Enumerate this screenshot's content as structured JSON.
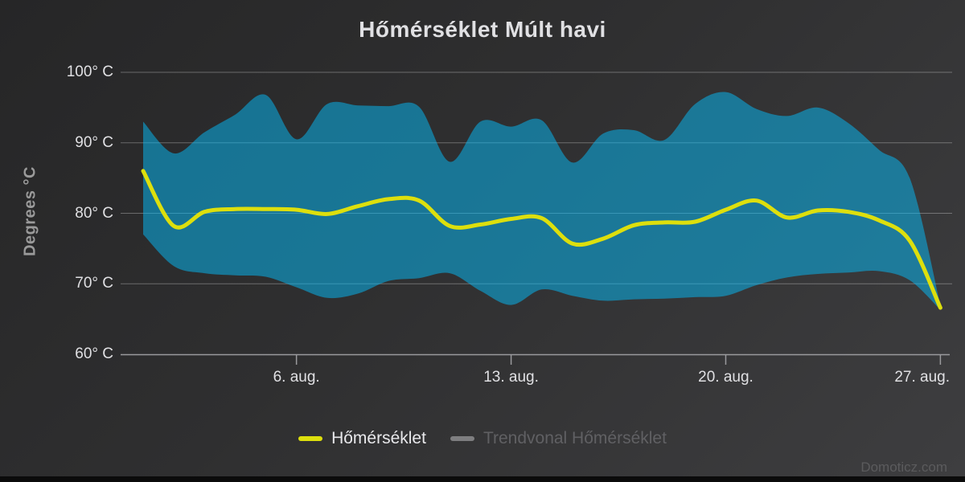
{
  "page": {
    "credit": "Domoticz.com"
  },
  "chart_data": {
    "type": "arearange+spline",
    "title": "Hőmérséklet Múlt havi",
    "ylabel": "Degrees °C",
    "ylim": [
      60,
      100
    ],
    "grid": true,
    "legend_position": "bottom-center",
    "yticks": [
      {
        "value": 100,
        "label": "100° C"
      },
      {
        "value": 90,
        "label": "90° C"
      },
      {
        "value": 80,
        "label": "80° C"
      },
      {
        "value": 70,
        "label": "70° C"
      },
      {
        "value": 60,
        "label": "60° C"
      }
    ],
    "x": [
      1,
      2,
      3,
      4,
      5,
      6,
      7,
      8,
      9,
      10,
      11,
      12,
      13,
      14,
      15,
      16,
      17,
      18,
      19,
      20,
      21,
      22,
      23,
      24,
      25,
      26,
      27
    ],
    "x_unit": "day of August",
    "xticks": [
      {
        "x": 6,
        "label": "6. aug."
      },
      {
        "x": 13,
        "label": "13. aug."
      },
      {
        "x": 20,
        "label": "20. aug."
      },
      {
        "x": 27,
        "label": "27. aug."
      }
    ],
    "series": [
      {
        "name": "Hőmérséklet (range)",
        "type": "arearange",
        "color": "rgba(3,190,252,0.5)",
        "max": [
          93,
          88.5,
          91.5,
          94,
          96.8,
          90.5,
          95.5,
          95.3,
          95.2,
          95.1,
          87.3,
          93,
          92.3,
          93.2,
          87.2,
          91.3,
          91.8,
          90.4,
          95.5,
          97.2,
          94.8,
          93.8,
          95,
          92.8,
          89,
          85,
          67
        ],
        "min": [
          77,
          72.5,
          71.5,
          71.2,
          71,
          69.5,
          68,
          68.6,
          70.4,
          70.8,
          71.5,
          69,
          67,
          69.2,
          68.3,
          67.6,
          67.8,
          67.9,
          68.1,
          68.3,
          69.8,
          70.9,
          71.4,
          71.6,
          71.8,
          70.5,
          66.3
        ]
      },
      {
        "name": "Hőmérséklet",
        "type": "spline",
        "color": "#DDDF0D",
        "values": [
          86,
          78.2,
          80.2,
          80.6,
          80.6,
          80.5,
          79.9,
          81,
          82,
          81.8,
          78.2,
          78.4,
          79.2,
          79.3,
          75.7,
          76.4,
          78.3,
          78.7,
          78.8,
          80.5,
          81.8,
          79.4,
          80.4,
          80.2,
          79,
          76.1,
          66.6
        ]
      },
      {
        "name": "Trendvonal Hőmérséklet",
        "type": "spline",
        "color": "#7E7E80",
        "visible": false,
        "values": []
      }
    ],
    "legend": {
      "items": [
        {
          "label": "Hőmérséklet",
          "slug": "homerseklet",
          "symbol_color": "#DDDF0D",
          "label_color": "#E8E8EB",
          "enabled": true
        },
        {
          "label": "Trendvonal Hőmérséklet",
          "slug": "trendvonal-homerseklet",
          "symbol_color": "#7E7E80",
          "label_color": "#606063",
          "enabled": false
        }
      ]
    },
    "colors": {
      "background_top_left": "#262627",
      "background_bottom_right": "#3E3E40",
      "grid_line": "rgba(255,255,255,0.30)",
      "axis_line": "#9A9A9D",
      "tick_text": "#E0E0E3",
      "y_axis_title": "#9A9A9A",
      "credit": "#5B5B5D",
      "bottom_bar": "#0B0B0B"
    }
  }
}
